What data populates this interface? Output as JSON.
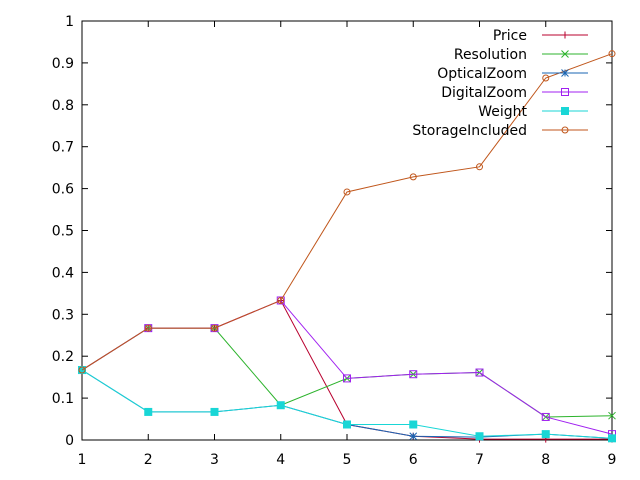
{
  "chart_data": {
    "type": "line",
    "title": "",
    "xlabel": "",
    "ylabel": "",
    "xlim": [
      1,
      9
    ],
    "ylim": [
      0,
      1
    ],
    "x": [
      1,
      2,
      3,
      4,
      5,
      6,
      7,
      8,
      9
    ],
    "x_ticks": [
      "1",
      "2",
      "3",
      "4",
      "5",
      "6",
      "7",
      "8",
      "9"
    ],
    "y_ticks": [
      0,
      0.1,
      0.2,
      0.3,
      0.4,
      0.5,
      0.6,
      0.7,
      0.8,
      0.9,
      1
    ],
    "y_tick_labels": [
      "0",
      "0.1",
      "0.2",
      "0.3",
      "0.4",
      "0.5",
      "0.6",
      "0.7",
      "0.8",
      "0.9",
      "1"
    ],
    "grid": false,
    "legend_position": "top-right",
    "series": [
      {
        "name": "Price",
        "color": "#b8002e",
        "marker": "plus",
        "values": [
          0.167,
          0.267,
          0.267,
          0.333,
          0.037,
          0.009,
          0.002,
          0.002,
          0.002
        ]
      },
      {
        "name": "Resolution",
        "color": "#2cb32c",
        "marker": "cross",
        "values": [
          0.167,
          0.267,
          0.267,
          0.083,
          0.147,
          0.157,
          0.161,
          0.055,
          0.058
        ]
      },
      {
        "name": "OpticalZoom",
        "color": "#1a66b3",
        "marker": "star",
        "values": [
          0.167,
          0.067,
          0.067,
          0.083,
          0.037,
          0.009,
          0.007,
          0.014,
          0.004
        ]
      },
      {
        "name": "DigitalZoom",
        "color": "#a020f0",
        "marker": "square",
        "values": [
          0.167,
          0.267,
          0.267,
          0.333,
          0.147,
          0.157,
          0.161,
          0.055,
          0.014
        ]
      },
      {
        "name": "Weight",
        "color": "#19d6d6",
        "marker": "filled-square",
        "values": [
          0.167,
          0.067,
          0.067,
          0.083,
          0.037,
          0.037,
          0.009,
          0.014,
          0.004
        ]
      },
      {
        "name": "StorageIncluded",
        "color": "#c0561b",
        "marker": "circle",
        "values": [
          0.167,
          0.267,
          0.267,
          0.333,
          0.592,
          0.628,
          0.652,
          0.864,
          0.922
        ]
      }
    ]
  }
}
